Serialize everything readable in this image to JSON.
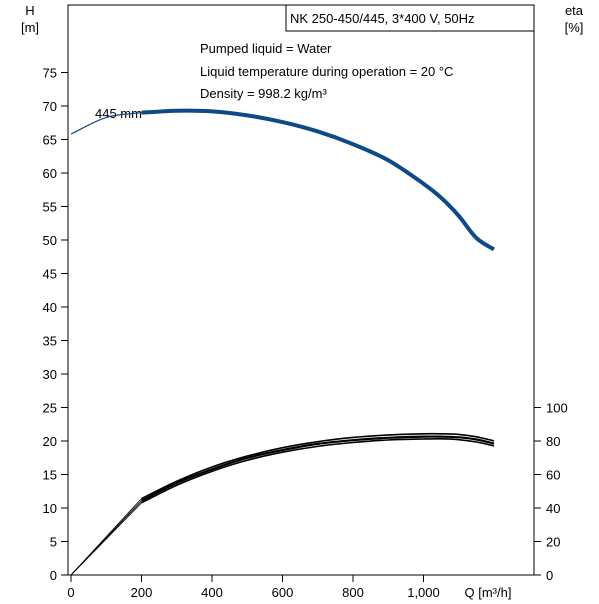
{
  "chart_data": {
    "type": "line",
    "title": "NK 250-450/445, 3*400 V, 50Hz",
    "info_lines": [
      "Pumped liquid = Water",
      "Liquid temperature during operation = 20 °C",
      "Density = 998.2 kg/m³"
    ],
    "left_axis": {
      "label_line1": "H",
      "label_line2": "[m]",
      "ticks": [
        "0",
        "5",
        "10",
        "15",
        "20",
        "25",
        "30",
        "35",
        "40",
        "45",
        "50",
        "55",
        "60",
        "65",
        "70",
        "75"
      ],
      "ylim": [
        0,
        75
      ]
    },
    "right_axis": {
      "label_line1": "eta",
      "label_line2": "[%]",
      "ticks": [
        "0",
        "20",
        "40",
        "60",
        "80",
        "100"
      ],
      "ylim": [
        0,
        100
      ]
    },
    "x_axis": {
      "label": "Q [m³/h]",
      "ticks": [
        "0",
        "200",
        "400",
        "600",
        "800",
        "1,000"
      ],
      "xlim": [
        0,
        1200
      ]
    },
    "curve_label": "445 mm",
    "series": [
      {
        "name": "445 mm",
        "axis": "left",
        "color": "#0d4a86",
        "x": [
          0,
          100,
          200,
          300,
          400,
          500,
          600,
          700,
          800,
          900,
          1000,
          1050,
          1100,
          1150,
          1200
        ],
        "y": [
          65.8,
          68.3,
          69.0,
          69.3,
          69.2,
          68.6,
          67.6,
          66.2,
          64.3,
          61.9,
          58.4,
          56.3,
          53.6,
          50.3,
          48.6
        ]
      },
      {
        "axis": "right",
        "color": "#000000",
        "x": [
          0,
          200,
          300,
          400,
          500,
          600,
          700,
          800,
          900,
          1000,
          1050,
          1100,
          1150,
          1200
        ],
        "y": [
          0,
          45.6,
          56.0,
          64.5,
          71.0,
          76.0,
          79.6,
          82.1,
          83.6,
          84.3,
          84.3,
          83.9,
          82.5,
          80.1
        ]
      },
      {
        "axis": "right",
        "color": "#000000",
        "x": [
          0,
          200,
          300,
          400,
          500,
          600,
          700,
          800,
          900,
          1000,
          1050,
          1100,
          1150,
          1200
        ],
        "y": [
          0,
          44.3,
          54.9,
          63.1,
          69.9,
          74.6,
          78.3,
          80.5,
          81.9,
          82.6,
          82.6,
          82.2,
          80.9,
          78.5
        ]
      },
      {
        "axis": "right",
        "color": "#000000",
        "x": [
          0,
          200,
          300,
          400,
          500,
          600,
          700,
          800,
          900,
          1000,
          1050,
          1100,
          1150,
          1200
        ],
        "y": [
          0,
          43.1,
          53.6,
          61.9,
          68.5,
          73.3,
          76.8,
          79.1,
          80.6,
          81.2,
          81.3,
          80.8,
          79.4,
          77.1
        ]
      }
    ],
    "grid": false
  }
}
